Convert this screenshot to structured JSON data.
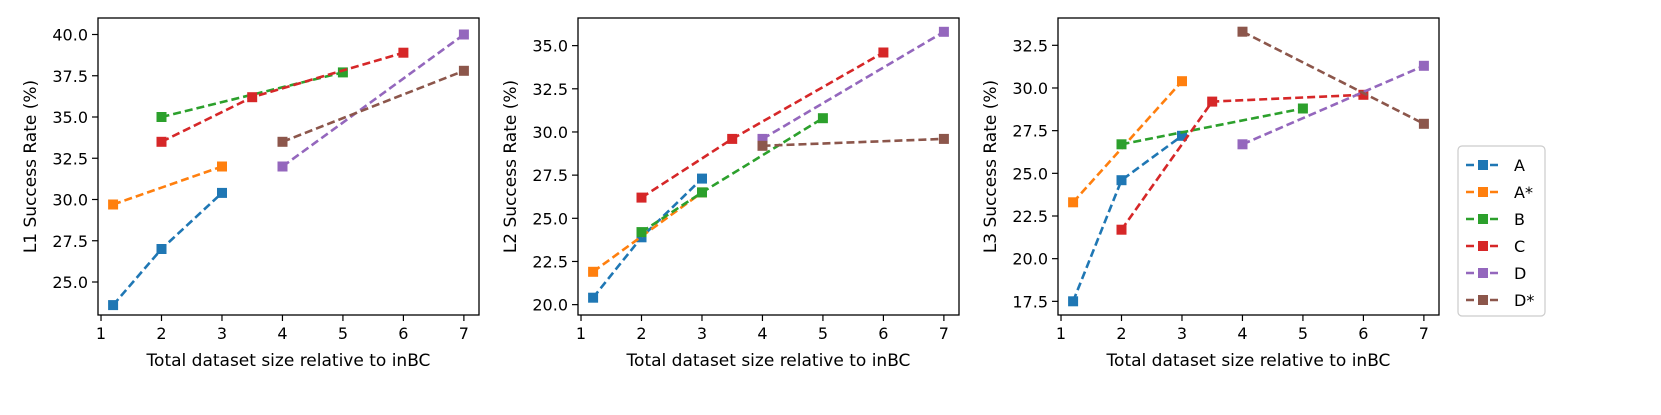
{
  "legend": {
    "placement": "right",
    "entries": [
      {
        "label": "A",
        "color": "#1f77b4"
      },
      {
        "label": "A*",
        "color": "#ff7f0e"
      },
      {
        "label": "B",
        "color": "#2ca02c"
      },
      {
        "label": "C",
        "color": "#d62728"
      },
      {
        "label": "D",
        "color": "#9467bd"
      },
      {
        "label": "D*",
        "color": "#8c564b"
      }
    ]
  },
  "chart_data": [
    {
      "type": "line",
      "xlabel": "Total dataset size relative to inBC",
      "ylabel": "L1 Success Rate (%)",
      "xlim": [
        0.95,
        7.25
      ],
      "ylim": [
        23.0,
        41.0
      ],
      "xticks": [
        1,
        2,
        3,
        4,
        5,
        6,
        7
      ],
      "yticks": [
        "25.0",
        "27.5",
        "30.0",
        "32.5",
        "35.0",
        "37.5",
        "40.0"
      ],
      "grid": false,
      "series": [
        {
          "name": "A",
          "color": "#1f77b4",
          "x": [
            1.2,
            2,
            3
          ],
          "y": [
            23.6,
            27.0,
            30.4
          ]
        },
        {
          "name": "A*",
          "color": "#ff7f0e",
          "x": [
            1.2,
            3
          ],
          "y": [
            29.7,
            32.0
          ]
        },
        {
          "name": "B",
          "color": "#2ca02c",
          "x": [
            2,
            5
          ],
          "y": [
            35.0,
            37.7
          ]
        },
        {
          "name": "C",
          "color": "#d62728",
          "x": [
            2,
            3.5,
            6
          ],
          "y": [
            33.5,
            36.2,
            38.9
          ]
        },
        {
          "name": "D",
          "color": "#9467bd",
          "x": [
            4,
            7
          ],
          "y": [
            32.0,
            40.0
          ]
        },
        {
          "name": "D*",
          "color": "#8c564b",
          "x": [
            4,
            7
          ],
          "y": [
            33.5,
            37.8
          ]
        }
      ]
    },
    {
      "type": "line",
      "xlabel": "Total dataset size relative to inBC",
      "ylabel": "L2 Success Rate (%)",
      "xlim": [
        0.95,
        7.25
      ],
      "ylim": [
        19.4,
        36.6
      ],
      "xticks": [
        1,
        2,
        3,
        4,
        5,
        6,
        7
      ],
      "yticks": [
        "20.0",
        "22.5",
        "25.0",
        "27.5",
        "30.0",
        "32.5",
        "35.0"
      ],
      "grid": false,
      "series": [
        {
          "name": "A",
          "color": "#1f77b4",
          "x": [
            1.2,
            2,
            3
          ],
          "y": [
            20.4,
            23.9,
            27.3
          ]
        },
        {
          "name": "A*",
          "color": "#ff7f0e",
          "x": [
            1.2,
            3
          ],
          "y": [
            21.9,
            26.5
          ]
        },
        {
          "name": "B",
          "color": "#2ca02c",
          "x": [
            2,
            3,
            5
          ],
          "y": [
            24.2,
            26.5,
            30.8
          ]
        },
        {
          "name": "C",
          "color": "#d62728",
          "x": [
            2,
            3.5,
            6
          ],
          "y": [
            26.2,
            29.6,
            34.6
          ]
        },
        {
          "name": "D",
          "color": "#9467bd",
          "x": [
            4,
            7
          ],
          "y": [
            29.6,
            35.8
          ]
        },
        {
          "name": "D*",
          "color": "#8c564b",
          "x": [
            4,
            7
          ],
          "y": [
            29.2,
            29.6
          ]
        }
      ]
    },
    {
      "type": "line",
      "xlabel": "Total dataset size relative to inBC",
      "ylabel": "L3 Success Rate (%)",
      "xlim": [
        0.95,
        7.25
      ],
      "ylim": [
        16.7,
        34.1
      ],
      "xticks": [
        1,
        2,
        3,
        4,
        5,
        6,
        7
      ],
      "yticks": [
        "17.5",
        "20.0",
        "22.5",
        "25.0",
        "27.5",
        "30.0",
        "32.5"
      ],
      "grid": false,
      "series": [
        {
          "name": "A",
          "color": "#1f77b4",
          "x": [
            1.2,
            2,
            3
          ],
          "y": [
            17.5,
            24.6,
            27.2
          ]
        },
        {
          "name": "A*",
          "color": "#ff7f0e",
          "x": [
            1.2,
            3
          ],
          "y": [
            23.3,
            30.4
          ]
        },
        {
          "name": "B",
          "color": "#2ca02c",
          "x": [
            2,
            5
          ],
          "y": [
            26.7,
            28.8
          ]
        },
        {
          "name": "C",
          "color": "#d62728",
          "x": [
            2,
            3.5,
            6
          ],
          "y": [
            21.7,
            29.2,
            29.6
          ]
        },
        {
          "name": "D",
          "color": "#9467bd",
          "x": [
            4,
            7
          ],
          "y": [
            26.7,
            31.3
          ]
        },
        {
          "name": "D*",
          "color": "#8c564b",
          "x": [
            4,
            7
          ],
          "y": [
            33.3,
            27.9
          ]
        }
      ]
    }
  ]
}
